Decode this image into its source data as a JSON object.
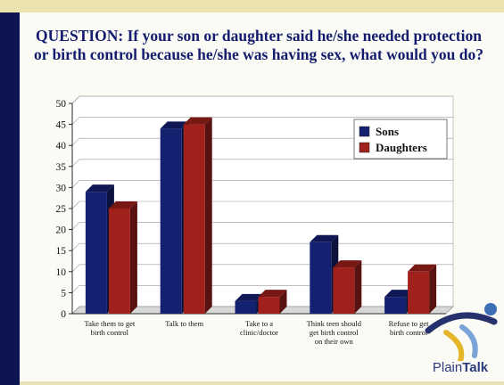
{
  "title": "QUESTION: If your son or daughter said he/she needed protection or birth control because he/she was having sex, what would you do?",
  "logo": {
    "text_regular": "Plain",
    "text_bold": "Talk"
  },
  "colors": {
    "sons": "#142070",
    "daughters": "#a0201c",
    "background": "#fbfbf6",
    "sidebar": "#0c1452",
    "title": "#141c6e"
  },
  "chart_data": {
    "type": "bar",
    "title": "",
    "xlabel": "",
    "ylabel": "",
    "ylim": [
      0,
      50
    ],
    "yticks": [
      0,
      5,
      10,
      15,
      20,
      25,
      30,
      35,
      40,
      45,
      50
    ],
    "grid": true,
    "legend_position": "top-right",
    "categories": [
      "Take them to get birth control",
      "Talk to them",
      "Take to a clinic/doctor",
      "Think teen should get birth control on their own",
      "Refuse to get birth control"
    ],
    "series": [
      {
        "name": "Sons",
        "color": "#142070",
        "values": [
          29,
          44,
          3,
          17,
          4
        ]
      },
      {
        "name": "Daughters",
        "color": "#a0201c",
        "values": [
          25,
          45,
          4,
          11,
          10
        ]
      }
    ]
  }
}
